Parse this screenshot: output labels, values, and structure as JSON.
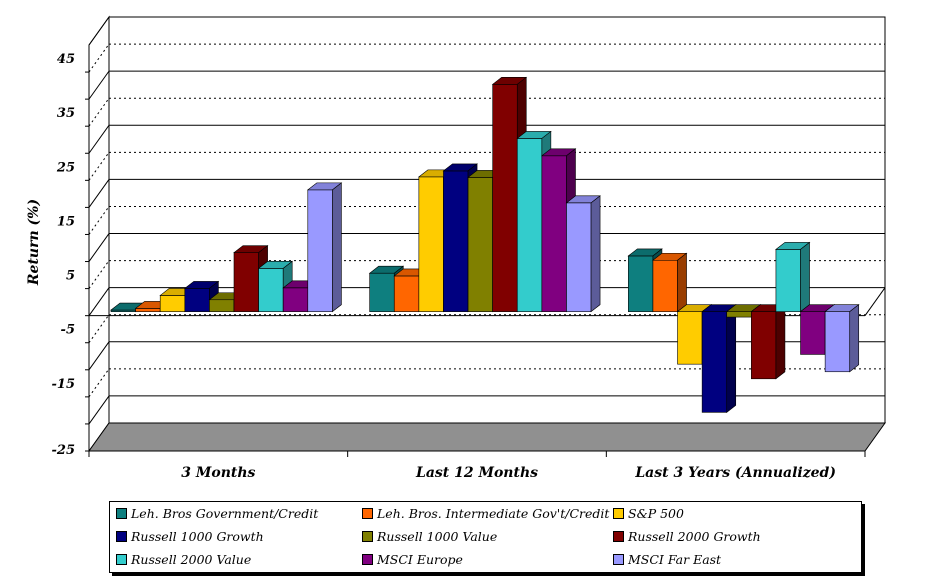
{
  "chart_data": {
    "type": "bar",
    "ylabel": "Return (%)",
    "ylim": [
      -25,
      50
    ],
    "yticks": [
      45,
      35,
      25,
      15,
      5,
      -5,
      -15,
      -25
    ],
    "grid": true,
    "legend_position": "bottom",
    "categories": [
      "3 Months",
      "Last 12 Months",
      "Last 3 Years (Annualized)"
    ],
    "series": [
      {
        "name": "Leh. Bros Government/Credit",
        "color": "#0e7f7f",
        "values": [
          0.3,
          7.1,
          10.3
        ]
      },
      {
        "name": "Leh. Bros. Intermediate Gov't/Credit",
        "color": "#ff6600",
        "values": [
          0.6,
          6.6,
          9.5
        ]
      },
      {
        "name": "S&P 500",
        "color": "#ffcc00",
        "values": [
          3.0,
          24.9,
          -9.7
        ]
      },
      {
        "name": "Russell 1000 Growth",
        "color": "#000080",
        "values": [
          4.3,
          26.0,
          -18.6
        ]
      },
      {
        "name": "Russell 1000 Value",
        "color": "#808000",
        "values": [
          2.2,
          24.8,
          -1.0
        ]
      },
      {
        "name": "Russell 2000 Growth",
        "color": "#800000",
        "values": [
          10.9,
          42.0,
          -12.4
        ]
      },
      {
        "name": "Russell 2000 Value",
        "color": "#33cccc",
        "values": [
          8.0,
          32.0,
          11.5
        ]
      },
      {
        "name": "MSCI Europe",
        "color": "#800080",
        "values": [
          4.4,
          28.8,
          -7.9
        ]
      },
      {
        "name": "MSCI Far East",
        "color": "#9999ff",
        "values": [
          22.5,
          20.1,
          -11.1
        ]
      }
    ]
  }
}
